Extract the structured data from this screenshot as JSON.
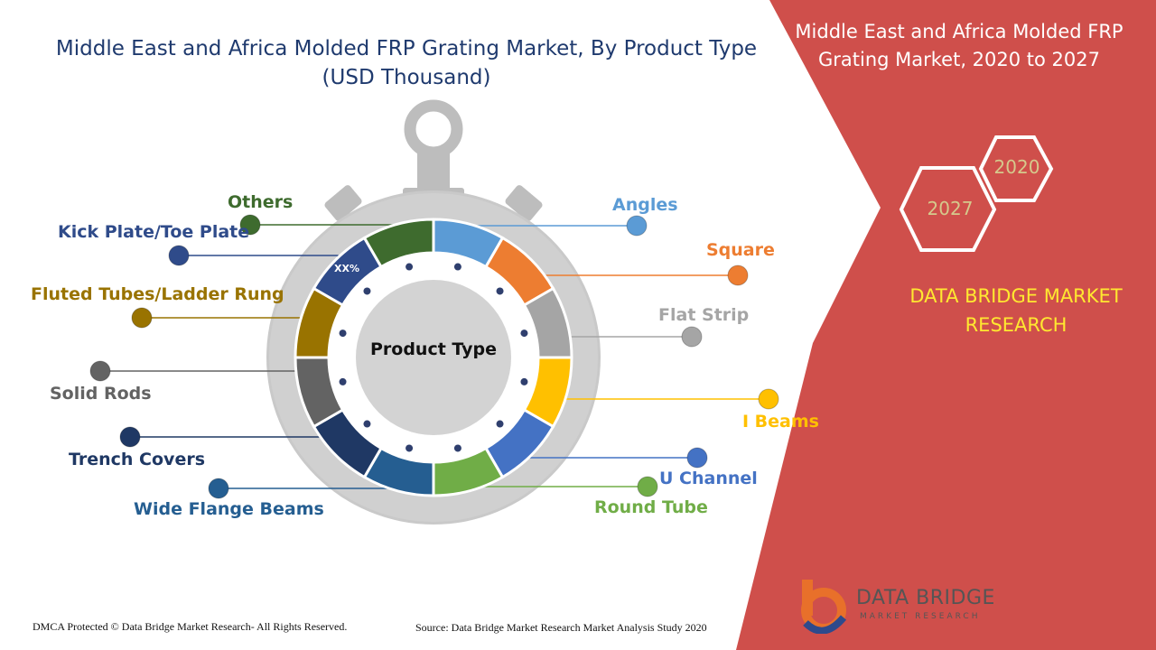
{
  "title": "Middle East and Africa Molded FRP Grating Market, By Product Type (USD Thousand)",
  "panel_title": "Middle East and Africa Molded FRP Grating Market, 2020 to 2027",
  "years": {
    "start": "2020",
    "end": "2027"
  },
  "brand_name": "DATA BRIDGE MARKET RESEARCH",
  "center_label": "Product Type",
  "placeholder_value": "XX%",
  "segments": [
    {
      "label": "Angles",
      "color": "#5b9bd5"
    },
    {
      "label": "Square",
      "color": "#ed7d31"
    },
    {
      "label": "Flat Strip",
      "color": "#a5a5a5"
    },
    {
      "label": "I Beams",
      "color": "#ffc000"
    },
    {
      "label": "U Channel",
      "color": "#4472c4"
    },
    {
      "label": "Round Tube",
      "color": "#70ad47"
    },
    {
      "label": "Wide Flange Beams",
      "color": "#255e91"
    },
    {
      "label": "Trench Covers",
      "color": "#1f3864"
    },
    {
      "label": "Solid Rods",
      "color": "#636363"
    },
    {
      "label": "Fluted Tubes/Ladder Rung",
      "color": "#997300"
    },
    {
      "label": "Kick Plate/Toe Plate",
      "color": "#2f4b8a"
    },
    {
      "label": "Others",
      "color": "#3e6b2e"
    }
  ],
  "footer": {
    "copyright": "DMCA Protected © Data Bridge Market Research- All Rights Reserved.",
    "source": "Source: Data Bridge Market Research Market Analysis Study 2020"
  },
  "logo": {
    "name": "DATA BRIDGE",
    "tagline": "MARKET RESEARCH"
  },
  "colors": {
    "panel_red": "#cf4f4b",
    "title_blue": "#1f3a6e",
    "brand_yellow": "#ffe830"
  }
}
